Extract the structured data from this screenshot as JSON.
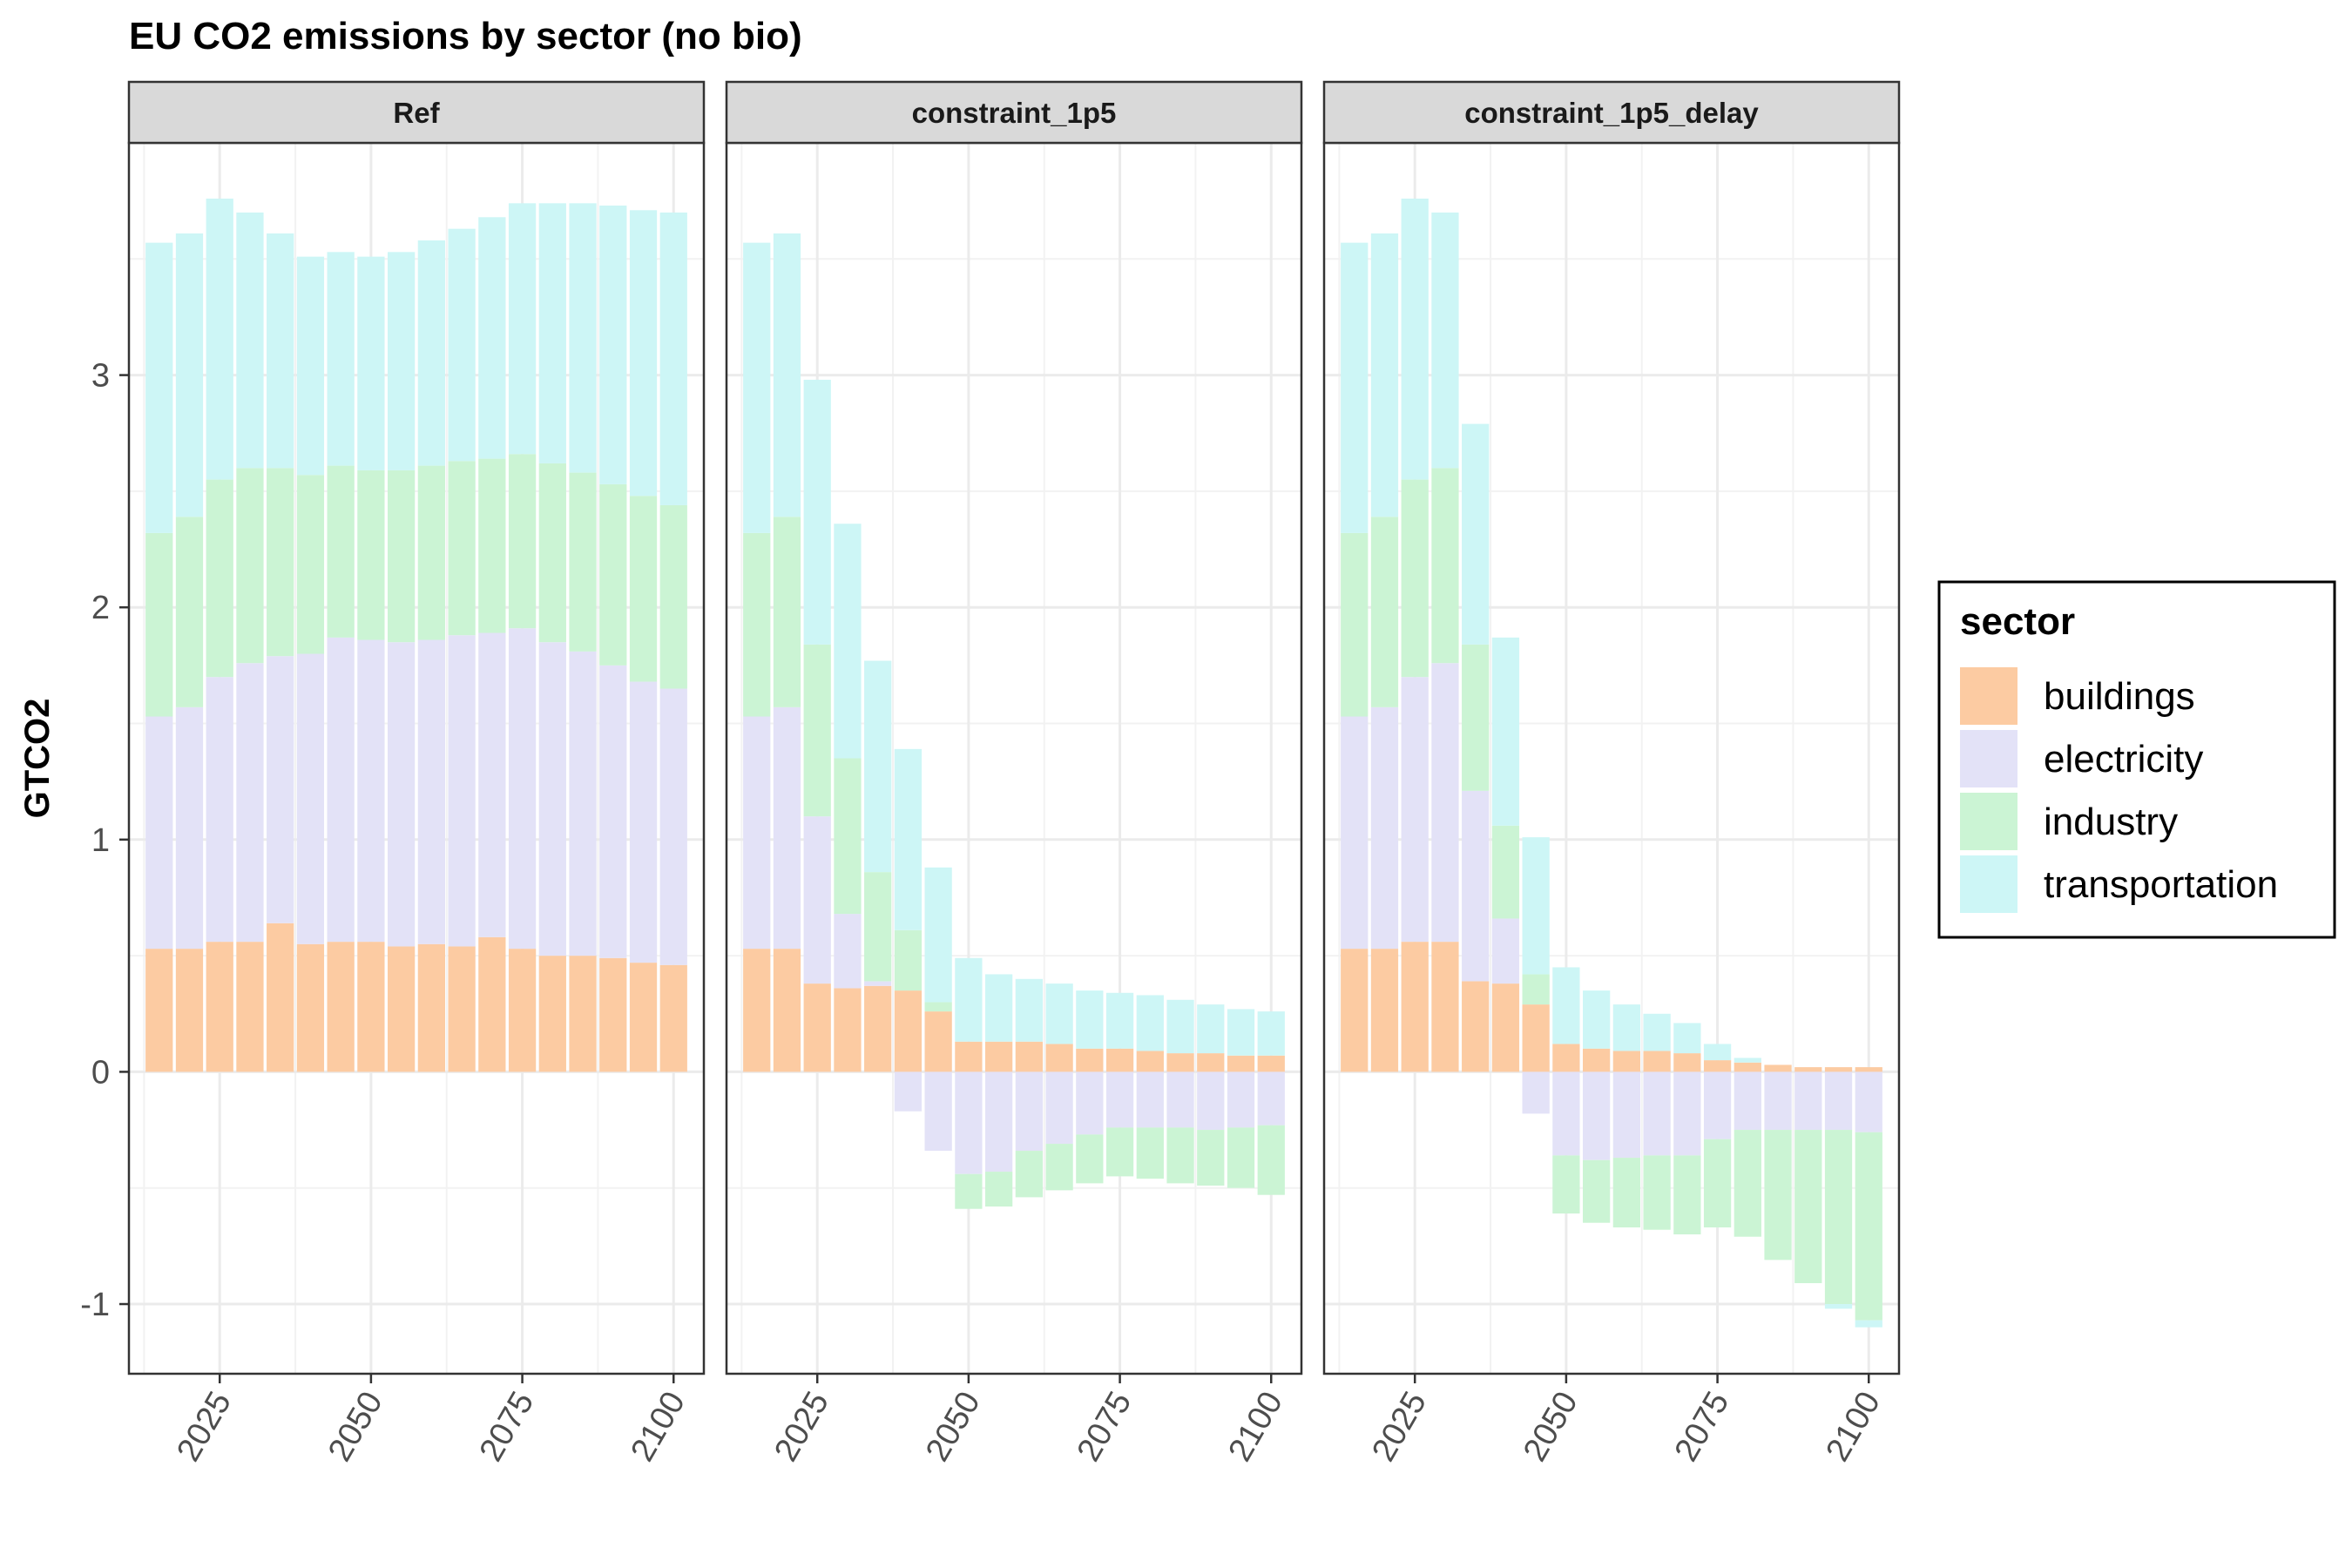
{
  "chart_data": {
    "type": "bar",
    "stacked": true,
    "title": "EU CO2 emissions by sector (no bio)",
    "ylabel": "GTCO2",
    "xlabel": "",
    "ylim": [
      -1.3,
      4.0
    ],
    "xlim": [
      2010,
      2105
    ],
    "x_ticks": [
      2025,
      2050,
      2075,
      2100
    ],
    "y_ticks": [
      -1,
      0,
      1,
      2,
      3
    ],
    "grid": true,
    "legend": {
      "title": "sector",
      "position": "right",
      "entries": [
        "buildings",
        "electricity",
        "industry",
        "transportation"
      ]
    },
    "colors": {
      "buildings": "#fccba2",
      "electricity": "#e3e2f7",
      "industry": "#cbf4d4",
      "transportation": "#cdf6f6"
    },
    "x": [
      2015,
      2020,
      2025,
      2030,
      2035,
      2040,
      2045,
      2050,
      2055,
      2060,
      2065,
      2070,
      2075,
      2080,
      2085,
      2090,
      2095,
      2100
    ],
    "panels": [
      {
        "name": "Ref",
        "series": [
          {
            "name": "transportation",
            "values": [
              1.25,
              1.22,
              1.21,
              1.1,
              1.01,
              0.94,
              0.92,
              0.92,
              0.94,
              0.97,
              1.0,
              1.04,
              1.08,
              1.12,
              1.16,
              1.2,
              1.23,
              1.26
            ]
          },
          {
            "name": "industry",
            "values": [
              0.79,
              0.82,
              0.85,
              0.84,
              0.81,
              0.77,
              0.74,
              0.73,
              0.74,
              0.75,
              0.75,
              0.75,
              0.75,
              0.77,
              0.77,
              0.78,
              0.8,
              0.79
            ]
          },
          {
            "name": "electricity",
            "values": [
              1.0,
              1.04,
              1.14,
              1.2,
              1.15,
              1.25,
              1.31,
              1.3,
              1.31,
              1.31,
              1.34,
              1.31,
              1.38,
              1.35,
              1.31,
              1.26,
              1.21,
              1.19
            ]
          },
          {
            "name": "buildings",
            "values": [
              0.53,
              0.53,
              0.56,
              0.56,
              0.64,
              0.55,
              0.56,
              0.56,
              0.54,
              0.55,
              0.54,
              0.58,
              0.53,
              0.5,
              0.5,
              0.49,
              0.47,
              0.46
            ]
          }
        ]
      },
      {
        "name": "constraint_1p5",
        "series": [
          {
            "name": "transportation",
            "values": [
              1.25,
              1.22,
              1.14,
              1.01,
              0.91,
              0.78,
              0.58,
              0.36,
              0.29,
              0.27,
              0.26,
              0.25,
              0.24,
              0.24,
              0.23,
              0.21,
              0.2,
              0.19
            ]
          },
          {
            "name": "industry",
            "values": [
              0.79,
              0.82,
              0.74,
              0.67,
              0.47,
              0.26,
              0.04,
              -0.15,
              -0.15,
              -0.2,
              -0.2,
              -0.21,
              -0.21,
              -0.22,
              -0.24,
              -0.24,
              -0.26,
              -0.3
            ]
          },
          {
            "name": "electricity",
            "values": [
              1.0,
              1.04,
              0.72,
              0.32,
              0.02,
              -0.17,
              -0.34,
              -0.44,
              -0.43,
              -0.34,
              -0.31,
              -0.27,
              -0.24,
              -0.24,
              -0.24,
              -0.25,
              -0.24,
              -0.23
            ]
          },
          {
            "name": "buildings",
            "values": [
              0.53,
              0.53,
              0.38,
              0.36,
              0.37,
              0.35,
              0.26,
              0.13,
              0.13,
              0.13,
              0.12,
              0.1,
              0.1,
              0.09,
              0.08,
              0.08,
              0.07,
              0.07
            ]
          }
        ]
      },
      {
        "name": "constraint_1p5_delay",
        "series": [
          {
            "name": "transportation",
            "values": [
              1.25,
              1.22,
              1.21,
              1.1,
              0.95,
              0.81,
              0.59,
              0.33,
              0.25,
              0.2,
              0.16,
              0.13,
              0.07,
              0.02,
              0.0,
              0.0,
              -0.02,
              -0.03
            ]
          },
          {
            "name": "industry",
            "values": [
              0.79,
              0.82,
              0.85,
              0.84,
              0.63,
              0.4,
              0.13,
              -0.25,
              -0.27,
              -0.3,
              -0.32,
              -0.34,
              -0.38,
              -0.46,
              -0.56,
              -0.66,
              -0.75,
              -0.81
            ]
          },
          {
            "name": "electricity",
            "values": [
              1.0,
              1.04,
              1.14,
              1.2,
              0.82,
              0.28,
              -0.18,
              -0.36,
              -0.38,
              -0.37,
              -0.36,
              -0.36,
              -0.29,
              -0.25,
              -0.25,
              -0.25,
              -0.25,
              -0.26
            ]
          },
          {
            "name": "buildings",
            "values": [
              0.53,
              0.53,
              0.56,
              0.56,
              0.39,
              0.38,
              0.29,
              0.12,
              0.1,
              0.09,
              0.09,
              0.08,
              0.05,
              0.04,
              0.03,
              0.02,
              0.02,
              0.02
            ]
          }
        ]
      }
    ]
  }
}
